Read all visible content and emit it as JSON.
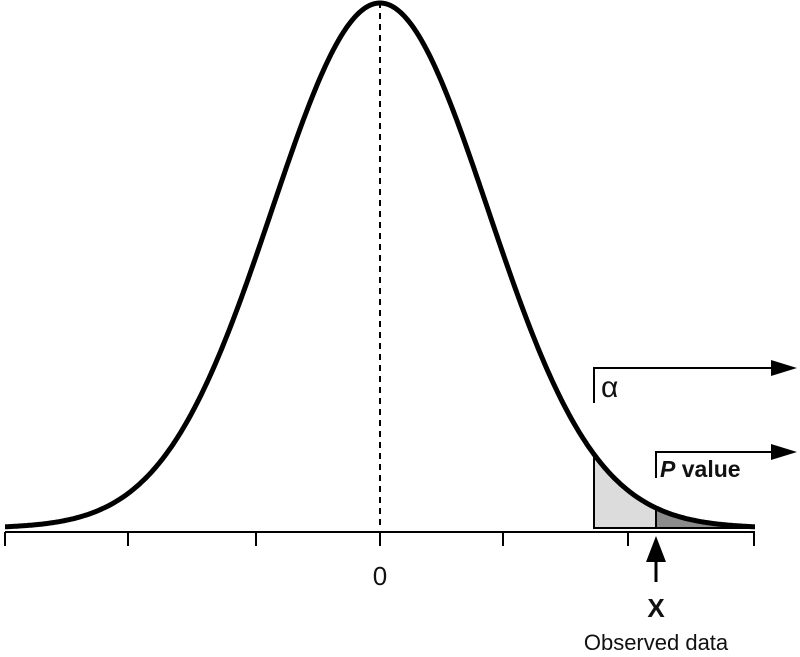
{
  "labels": {
    "center_tick": "0",
    "alpha": "α",
    "p_value_italic": "P",
    "p_value_word": " value",
    "observed_letter": "X",
    "observed_caption": "Observed data"
  },
  "colors": {
    "curve": "#000000",
    "alpha_region_fill": "#dcdcdc",
    "p_value_region_fill": "#8c8c8c",
    "background": "#ffffff"
  }
}
